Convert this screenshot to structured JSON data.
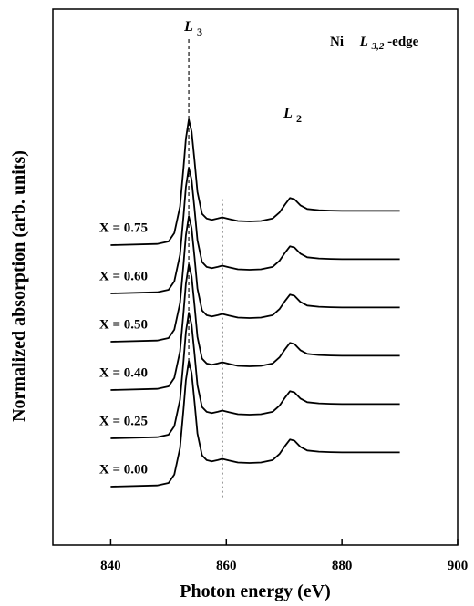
{
  "chart_data": {
    "type": "line",
    "title": "",
    "xlabel": "Photon energy (eV)",
    "ylabel": "Normalized absorption (arb. units)",
    "xlim": [
      830,
      900
    ],
    "x_ticks": [
      840,
      860,
      880,
      900
    ],
    "y_axis_ticks": "none",
    "grid": false,
    "legend": "none",
    "edge_label": {
      "prefix": "Ni",
      "main": "L",
      "sub": "3,2",
      "suffix": "-edge"
    },
    "peak_labels": [
      {
        "main": "L",
        "sub": "3",
        "x": 853.5
      },
      {
        "main": "L",
        "sub": "2",
        "x": 871
      }
    ],
    "reference_lines": [
      {
        "x": 853.5,
        "style": "dashed"
      },
      {
        "x": 859.3,
        "style": "dotted"
      }
    ],
    "series": [
      {
        "label": "X = 0.00",
        "offset": 0
      },
      {
        "label": "X = 0.25",
        "offset": 0.2
      },
      {
        "label": "X = 0.40",
        "offset": 0.4
      },
      {
        "label": "X = 0.50",
        "offset": 0.6
      },
      {
        "label": "X = 0.60",
        "offset": 0.8
      },
      {
        "label": "X = 0.75",
        "offset": 1.0
      }
    ],
    "shared_profile": {
      "x": [
        840,
        848,
        850,
        851,
        852,
        852.6,
        853.0,
        853.5,
        854.0,
        854.5,
        855.0,
        855.8,
        856.6,
        857.5,
        858.5,
        859.3,
        860.5,
        862,
        864,
        866,
        868,
        869.2,
        870.2,
        871.0,
        871.8,
        872.8,
        874,
        876,
        878,
        880,
        884,
        890
      ],
      "y": [
        0.0,
        0.005,
        0.015,
        0.05,
        0.16,
        0.32,
        0.44,
        0.52,
        0.47,
        0.35,
        0.22,
        0.13,
        0.11,
        0.105,
        0.11,
        0.115,
        0.108,
        0.1,
        0.098,
        0.1,
        0.11,
        0.135,
        0.17,
        0.195,
        0.19,
        0.165,
        0.15,
        0.145,
        0.143,
        0.142,
        0.142,
        0.142
      ]
    }
  }
}
